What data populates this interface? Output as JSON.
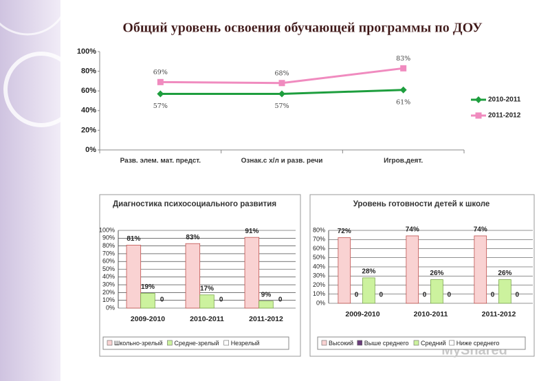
{
  "chart_data": [
    {
      "type": "line",
      "title": "Общий уровень освоения обучающей программы по ДОУ",
      "categories": [
        "Разв. элем. мат. предст.",
        "Ознак.с х/л и разв. речи",
        "Игров.деят."
      ],
      "series": [
        {
          "name": "2010-2011",
          "color": "#1e9e3e",
          "values": [
            57,
            57,
            61
          ],
          "value_labels": [
            "57%",
            "57%",
            "61%"
          ]
        },
        {
          "name": "2011-2012",
          "color": "#f08bbf",
          "values": [
            69,
            68,
            83
          ],
          "value_labels": [
            "69%",
            "68%",
            "83%"
          ]
        }
      ],
      "ylim": [
        0,
        100
      ],
      "yticks": [
        {
          "value": 0,
          "label": "0%"
        },
        {
          "value": 20,
          "label": "20%"
        },
        {
          "value": 40,
          "label": "40%"
        },
        {
          "value": 60,
          "label": "60%"
        },
        {
          "value": 80,
          "label": "80%"
        },
        {
          "value": 100,
          "label": "100%"
        }
      ],
      "grid": false,
      "legend": "right"
    },
    {
      "type": "bar",
      "title": "Диагностика психосоциального развития",
      "categories": [
        "2009-2010",
        "2010-2011",
        "2011-2012"
      ],
      "series": [
        {
          "name": "Школьно-зрелый",
          "color": "#f9d2d2",
          "values": [
            81,
            83,
            91
          ],
          "value_labels": [
            "81%",
            "83%",
            "91%"
          ]
        },
        {
          "name": "Средне-зрелый",
          "color": "#ccf29e",
          "values": [
            19,
            17,
            9
          ],
          "value_labels": [
            "19%",
            "17%",
            "9%"
          ]
        },
        {
          "name": "Незрелый",
          "color": "#ffffff",
          "values": [
            0,
            0,
            0
          ]
        }
      ],
      "ylim": [
        0,
        100
      ],
      "yticks": [
        {
          "value": 0,
          "label": "0%"
        },
        {
          "value": 10,
          "label": "10%"
        },
        {
          "value": 20,
          "label": "20%"
        },
        {
          "value": 30,
          "label": "30%"
        },
        {
          "value": 40,
          "label": "40%"
        },
        {
          "value": 50,
          "label": "50%"
        },
        {
          "value": 60,
          "label": "60%"
        },
        {
          "value": 70,
          "label": "70%"
        },
        {
          "value": 80,
          "label": "80%"
        },
        {
          "value": 90,
          "label": "90%"
        },
        {
          "value": 100,
          "label": "100%"
        }
      ],
      "grid": true,
      "legend": "bottom"
    },
    {
      "type": "bar",
      "title": "Уровень готовности детей к школе",
      "categories": [
        "2009-2010",
        "2010-2011",
        "2011-2012"
      ],
      "series": [
        {
          "name": "Высокий",
          "color": "#f9d2d2",
          "values": [
            72,
            74,
            74
          ],
          "value_labels": [
            "72%",
            "74%",
            "74%"
          ]
        },
        {
          "name": "Выше среднего",
          "color": "#6a3d7a",
          "values": [
            0,
            0,
            0
          ]
        },
        {
          "name": "Средний",
          "color": "#ccf29e",
          "values": [
            28,
            26,
            26
          ],
          "value_labels": [
            "28%",
            "26%",
            "26%"
          ]
        },
        {
          "name": "Ниже среднего",
          "color": "#ffffff",
          "values": [
            0,
            0,
            0
          ]
        }
      ],
      "ylim": [
        0,
        80
      ],
      "yticks": [
        {
          "value": 0,
          "label": "0%"
        },
        {
          "value": 10,
          "label": "10%"
        },
        {
          "value": 20,
          "label": "20%"
        },
        {
          "value": 30,
          "label": "30%"
        },
        {
          "value": 40,
          "label": "40%"
        },
        {
          "value": 50,
          "label": "50%"
        },
        {
          "value": 60,
          "label": "60%"
        },
        {
          "value": 70,
          "label": "70%"
        },
        {
          "value": 80,
          "label": "80%"
        }
      ],
      "grid": true,
      "legend": "bottom"
    }
  ],
  "watermark": "MyShared"
}
